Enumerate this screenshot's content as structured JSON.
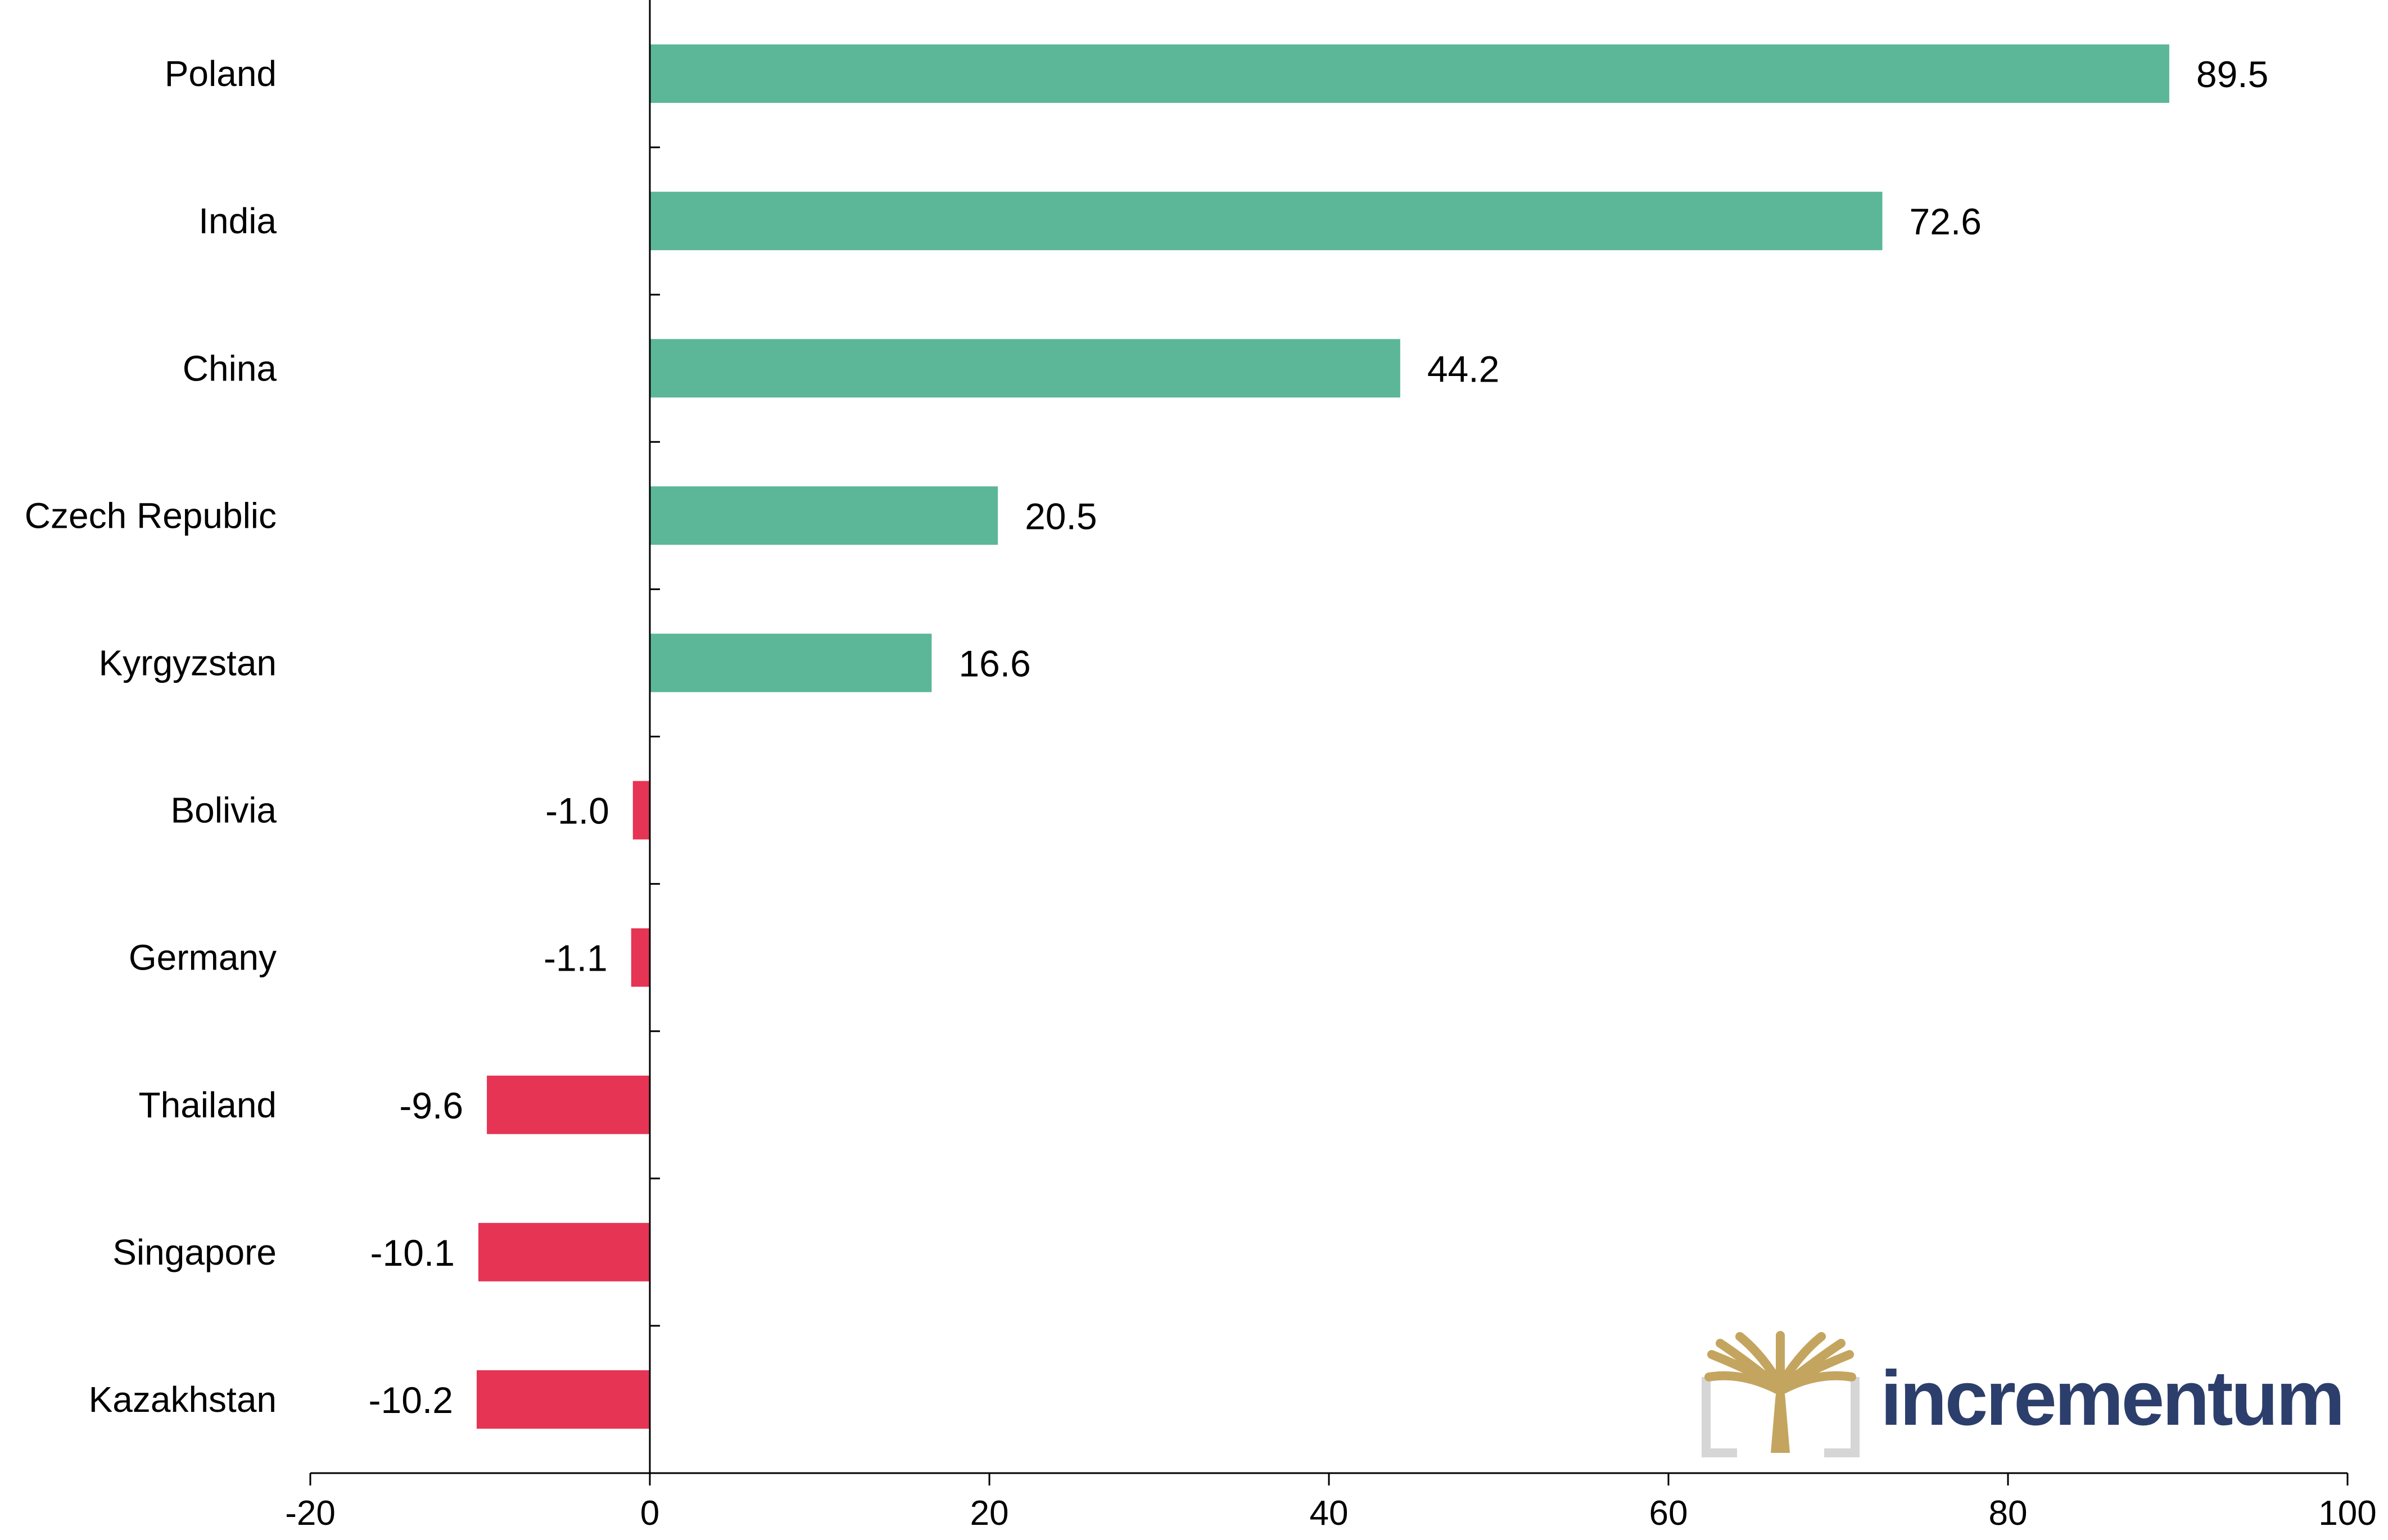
{
  "chart_data": {
    "type": "bar",
    "orientation": "horizontal",
    "categories": [
      "Poland",
      "India",
      "China",
      "Czech Republic",
      "Kyrgyzstan",
      "Bolivia",
      "Germany",
      "Thailand",
      "Singapore",
      "Kazakhstan"
    ],
    "values": [
      89.5,
      72.6,
      44.2,
      20.5,
      16.6,
      -1.0,
      -1.1,
      -9.6,
      -10.1,
      -10.2
    ],
    "value_labels": [
      "89.5",
      "72.6",
      "44.2",
      "20.5",
      "16.6",
      "-1.0",
      "-1.1",
      "-9.6",
      "-10.1",
      "-10.2"
    ],
    "xlim": [
      -20,
      100
    ],
    "xticks": [
      -20,
      0,
      20,
      40,
      60,
      80,
      100
    ],
    "xtick_labels": [
      "-20",
      "0",
      "20",
      "40",
      "60",
      "80",
      "100"
    ],
    "title": "",
    "xlabel": "",
    "ylabel": "",
    "grid": false,
    "colors": {
      "positive": "#5bb797",
      "negative": "#e63455",
      "axis": "#000000"
    }
  },
  "branding": {
    "name": "incrementum",
    "text_color": "#2c3e6b",
    "logo_color": "#c4a55f",
    "logo_frame_color": "#d6d6d6",
    "logo_icon": "tree-logo-icon"
  }
}
